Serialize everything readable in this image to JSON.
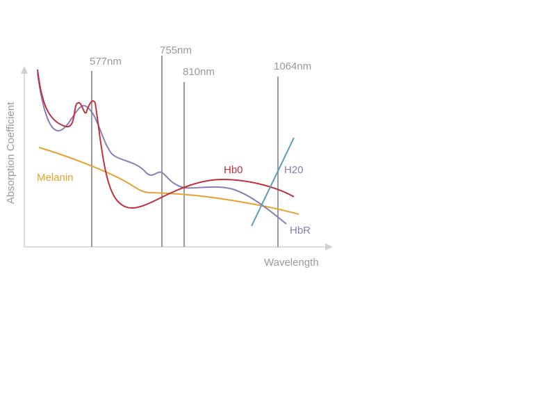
{
  "axes": {
    "y_label": "Absorption Coefficient",
    "x_label": "Wavelength"
  },
  "wavelengths": [
    "577nm",
    "755nm",
    "810nm",
    "1064nm"
  ],
  "curves": {
    "hbo": "Hb0",
    "h2o": "H20",
    "hbr": "HbR",
    "melanin": "Melanin"
  }
}
